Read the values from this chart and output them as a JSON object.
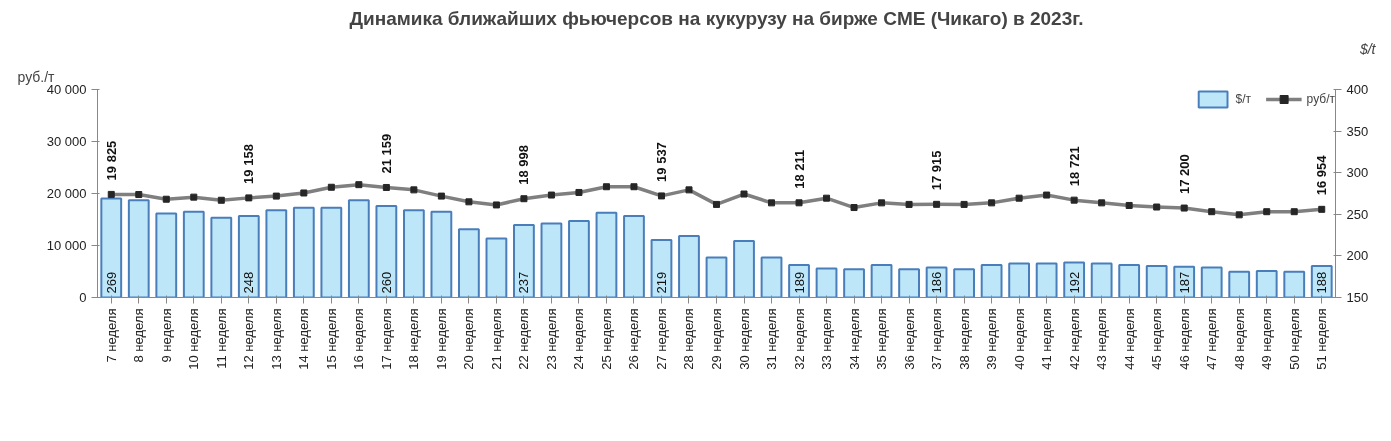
{
  "chart_data": {
    "type": "bar",
    "title": "Динамика ближайших фьючерсов на кукурузу на бирже CME (Чикаго) в 2023г.",
    "ylabel": "руб./т",
    "y2label": "$/t",
    "legend": "top right",
    "grid": false,
    "categories": [
      "7 неделя",
      "8 неделя",
      "9 неделя",
      "10 неделя",
      "11 неделя",
      "12 неделя",
      "13 неделя",
      "14 неделя",
      "15 неделя",
      "16 неделя",
      "17 неделя",
      "18 неделя",
      "19 неделя",
      "20 неделя",
      "21 неделя",
      "22 неделя",
      "23 неделя",
      "24 неделя",
      "25 неделя",
      "26 неделя",
      "27 неделя",
      "28 неделя",
      "29 неделя",
      "30 неделя",
      "31 неделя",
      "32 неделя",
      "33 неделя",
      "34 неделя",
      "35 неделя",
      "36 неделя",
      "37 неделя",
      "38 неделя",
      "39 неделя",
      "40 неделя",
      "41 неделя",
      "42 неделя",
      "43 неделя",
      "44 неделя",
      "45 неделя",
      "46 неделя",
      "47 неделя",
      "48 неделя",
      "49 неделя",
      "50 неделя",
      "51 неделя"
    ],
    "series": [
      {
        "name": "$/т",
        "axis": "y2",
        "color": "#bde6f8",
        "values": [
          269,
          267,
          251,
          253,
          246,
          248,
          255,
          258,
          258,
          267,
          260,
          255,
          253,
          232,
          221,
          237,
          239,
          242,
          252,
          248,
          219,
          224,
          198,
          218,
          198,
          189,
          185,
          184,
          189,
          184,
          186,
          184,
          189,
          191,
          191,
          192,
          191,
          189,
          188,
          187,
          186,
          181,
          182,
          181,
          188
        ],
        "value_labels": [
          "269",
          null,
          null,
          null,
          null,
          "248",
          null,
          null,
          null,
          null,
          "260",
          null,
          null,
          null,
          null,
          "237",
          null,
          null,
          null,
          null,
          "219",
          null,
          null,
          null,
          null,
          "189",
          null,
          null,
          null,
          null,
          "186",
          null,
          null,
          null,
          null,
          "192",
          null,
          null,
          null,
          "187",
          null,
          null,
          null,
          null,
          "188"
        ]
      },
      {
        "name": "руб/т",
        "type": "line",
        "color": "#7f7f7f",
        "marker": "square",
        "line_style": "solid",
        "values": [
          19825,
          19800,
          18900,
          19300,
          18700,
          19158,
          19500,
          20100,
          21200,
          21700,
          21159,
          20700,
          19500,
          18400,
          17800,
          18998,
          19700,
          20200,
          21300,
          21300,
          19537,
          20700,
          17900,
          19900,
          18200,
          18211,
          19100,
          17300,
          18200,
          17900,
          17915,
          17900,
          18200,
          19100,
          19700,
          18721,
          18200,
          17700,
          17400,
          17200,
          16500,
          15900,
          16500,
          16500,
          16954
        ],
        "value_labels": [
          "19 825",
          null,
          null,
          null,
          null,
          "19 158",
          null,
          null,
          null,
          null,
          "21 159",
          null,
          null,
          null,
          null,
          "18 998",
          null,
          null,
          null,
          null,
          "19 537",
          null,
          null,
          null,
          null,
          "18 211",
          null,
          null,
          null,
          null,
          "17 915",
          null,
          null,
          null,
          null,
          "18 721",
          null,
          null,
          null,
          "17 200",
          null,
          null,
          null,
          null,
          "16 954"
        ]
      }
    ],
    "ylim": [
      0,
      40000
    ],
    "yticks": [
      {
        "value": 0,
        "label": "0"
      },
      {
        "value": 10000,
        "label": "10 000"
      },
      {
        "value": 20000,
        "label": "20 000"
      },
      {
        "value": 30000,
        "label": "30 000"
      },
      {
        "value": 40000,
        "label": "40 000"
      }
    ],
    "y2lim": [
      150,
      400
    ],
    "y2ticks": [
      150,
      200,
      250,
      300,
      350,
      400
    ]
  }
}
